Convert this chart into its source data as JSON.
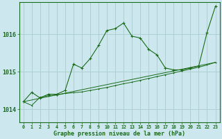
{
  "bg_color": "#cce8ee",
  "grid_color": "#aacccc",
  "line_color": "#1a6b1a",
  "marker_color": "#1a6b1a",
  "xlabel": "Graphe pression niveau de la mer (hPa)",
  "xlabel_fontsize": 6.0,
  "ylabel_ticks": [
    1014,
    1015,
    1016
  ],
  "xlim": [
    -0.5,
    23.5
  ],
  "ylim": [
    1013.65,
    1016.85
  ],
  "hours": [
    0,
    1,
    2,
    3,
    4,
    5,
    6,
    7,
    8,
    9,
    10,
    11,
    12,
    13,
    14,
    15,
    16,
    17,
    18,
    19,
    20,
    21,
    22,
    23
  ],
  "series1": [
    1014.2,
    1014.45,
    1014.3,
    1014.4,
    1014.4,
    1014.5,
    1015.2,
    1015.1,
    1015.35,
    1015.7,
    1016.1,
    1016.15,
    1016.3,
    1015.95,
    1015.9,
    1015.6,
    1015.45,
    1015.1,
    1015.05,
    1015.05,
    1015.1,
    1015.15,
    1016.05,
    1016.75
  ],
  "series2": [
    1014.2,
    1014.1,
    1014.32,
    1014.36,
    1014.38,
    1014.42,
    1014.44,
    1014.46,
    1014.5,
    1014.54,
    1014.58,
    1014.63,
    1014.68,
    1014.72,
    1014.77,
    1014.82,
    1014.87,
    1014.92,
    1014.97,
    1015.02,
    1015.07,
    1015.12,
    1015.18,
    1015.25
  ],
  "series3": [
    1014.2,
    1015.25
  ],
  "series3_x": [
    0,
    23
  ],
  "xtick_labels": [
    "0",
    "1",
    "2",
    "3",
    "4",
    "5",
    "6",
    "7",
    "8",
    "9",
    "10",
    "11",
    "12",
    "13",
    "14",
    "15",
    "16",
    "17",
    "18",
    "19",
    "20",
    "21",
    "22",
    "23"
  ],
  "xtick_fontsize": 4.8,
  "ytick_fontsize": 6.0,
  "figsize": [
    3.2,
    2.0
  ],
  "dpi": 100
}
